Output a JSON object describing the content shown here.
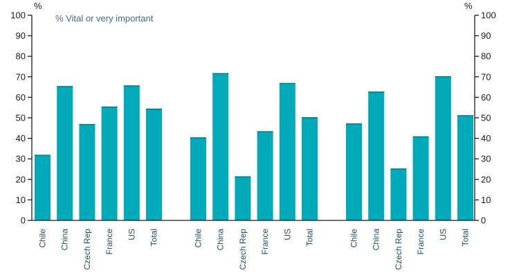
{
  "chart_data": {
    "type": "bar",
    "title": "",
    "annotation": "% Vital or very important",
    "y_unit_left": "%",
    "y_unit_right": "%",
    "ylim": [
      0,
      100
    ],
    "yticks": [
      0,
      10,
      20,
      30,
      40,
      50,
      60,
      70,
      80,
      90,
      100
    ],
    "grid": false,
    "bar_color": "#00aab9",
    "groups": [
      {
        "categories": [
          "Chile",
          "China",
          "Czech Rep",
          "France",
          "US",
          "Total"
        ],
        "values": [
          32,
          65.5,
          47,
          55.5,
          65.8,
          54.5
        ]
      },
      {
        "categories": [
          "Chile",
          "China",
          "Czech Rep",
          "France",
          "US",
          "Total"
        ],
        "values": [
          40.5,
          71.8,
          21.5,
          43.5,
          67,
          50.3
        ]
      },
      {
        "categories": [
          "Chile",
          "China",
          "Czech Rep",
          "France",
          "US",
          "Total"
        ],
        "values": [
          47.3,
          62.8,
          25.3,
          41,
          70.3,
          51.3
        ]
      }
    ]
  }
}
